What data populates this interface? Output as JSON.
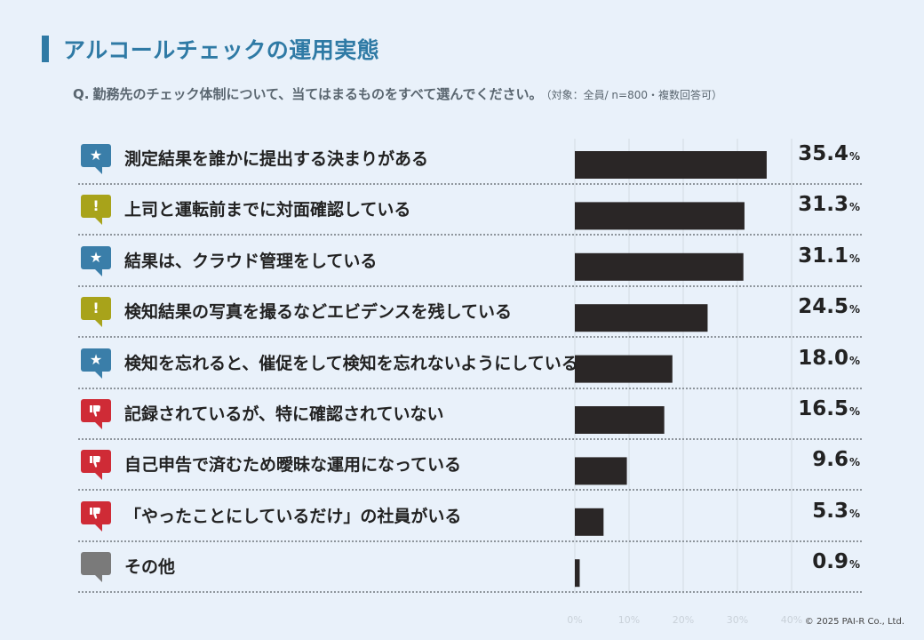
{
  "title": "アルコールチェックの運用実態",
  "question": {
    "prefix": "Q.",
    "text": "勤務先のチェック体制について、当てはまるものをすべて選んでください。",
    "note": "（対象：全員/ n=800・複数回答可）"
  },
  "copyright": "© 2025 PAI-R Co., Ltd.",
  "colors": {
    "bar": "#2a2626",
    "title_accent": "#2f7aa5",
    "star_badge": "#3a7ea9",
    "warn_badge": "#a8a31a",
    "down_badge": "#cf2b36",
    "other_badge": "#7a7a7a"
  },
  "chart_data": {
    "type": "bar",
    "orientation": "horizontal",
    "categories": [
      "測定結果を誰かに提出する決まりがある",
      "上司と運転前までに対面確認している",
      "結果は、クラウド管理をしている",
      "検知結果の写真を撮るなどエビデンスを残している",
      "検知を忘れると、催促をして検知を忘れないようにしている",
      "記録されているが、特に確認されていない",
      "自己申告で済むため曖昧な運用になっている",
      "「やったことにしているだけ」の社員がいる",
      "その他"
    ],
    "values": [
      35.4,
      31.3,
      31.1,
      24.5,
      18.0,
      16.5,
      9.6,
      5.3,
      0.9
    ],
    "value_labels": [
      "35.4",
      "31.3",
      "31.1",
      "24.5",
      "18.0",
      "16.5",
      "9.6",
      "5.3",
      "0.9"
    ],
    "value_unit": "%",
    "icons": [
      "star-icon",
      "exclamation-icon",
      "star-icon",
      "exclamation-icon",
      "star-icon",
      "thumbs-down-icon",
      "thumbs-down-icon",
      "thumbs-down-icon",
      "speech-bubble-icon"
    ],
    "ticks": [
      0,
      10,
      20,
      30,
      40
    ],
    "tick_labels": [
      "0%",
      "10%",
      "20%",
      "30%",
      "40%"
    ],
    "xlim": [
      0,
      40
    ],
    "grid": true
  }
}
